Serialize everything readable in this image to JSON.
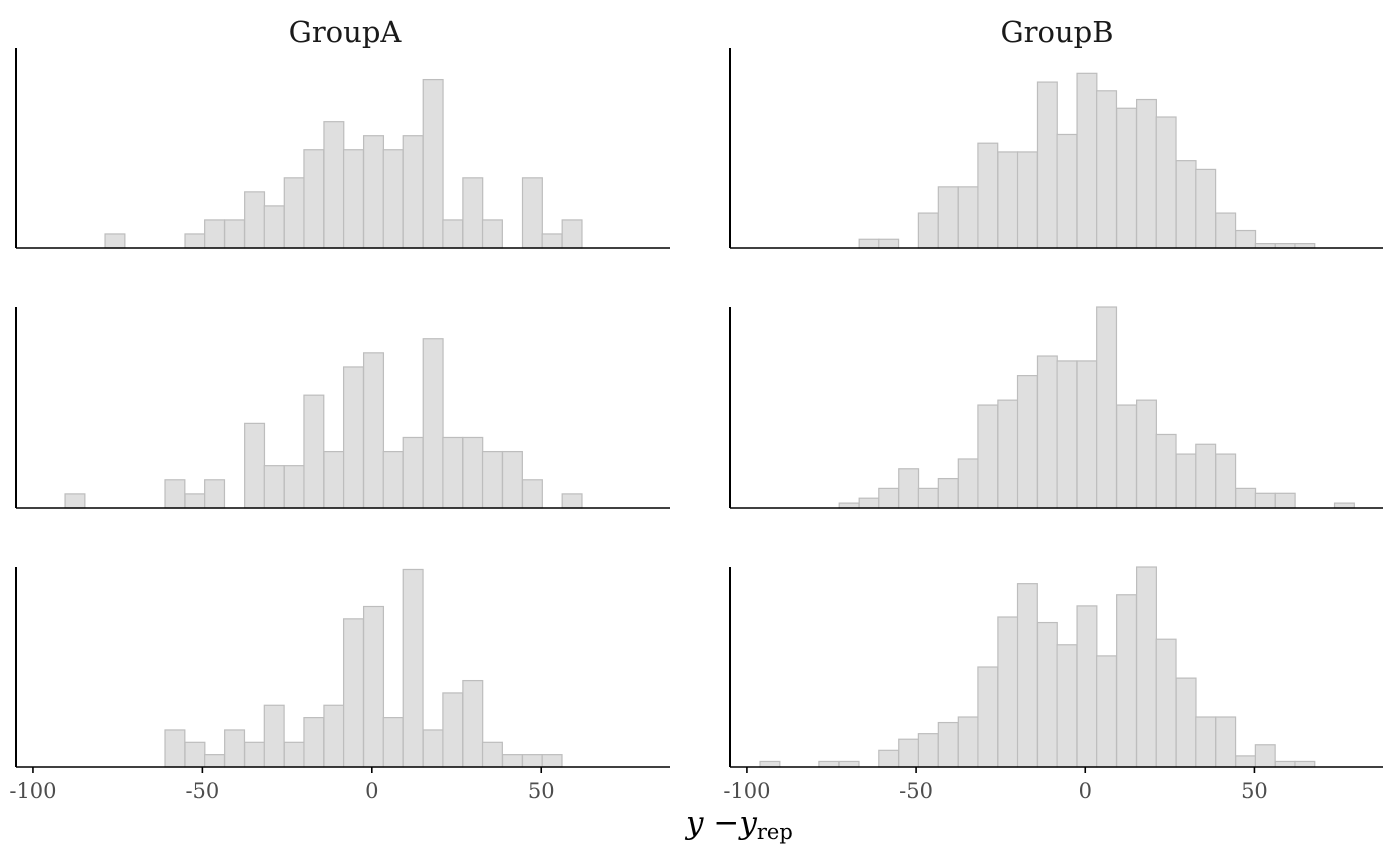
{
  "chart_data": {
    "type": "histogram",
    "facets": [
      "GroupA",
      "GroupB"
    ],
    "xlabel": {
      "main": "y −y",
      "sub": "rep"
    },
    "xlim": [
      -105,
      88
    ],
    "x_ticks": [
      -100,
      -50,
      0,
      50
    ],
    "x_tick_labels": [
      "-100",
      "-50",
      "0",
      "50"
    ],
    "bin_width": 5.85,
    "panels": [
      {
        "facet": "GroupA",
        "row": 1,
        "bins": [
          [
            -75.8,
            1
          ],
          [
            -52.2,
            1
          ],
          [
            -46.4,
            2
          ],
          [
            -40.5,
            2
          ],
          [
            -34.6,
            4
          ],
          [
            -28.8,
            3
          ],
          [
            -22.9,
            5
          ],
          [
            -17.1,
            7
          ],
          [
            -11.2,
            9
          ],
          [
            -5.4,
            7
          ],
          [
            0.5,
            8
          ],
          [
            6.3,
            7
          ],
          [
            12.2,
            8
          ],
          [
            18.1,
            12
          ],
          [
            23.9,
            2
          ],
          [
            29.8,
            5
          ],
          [
            35.6,
            2
          ],
          [
            47.4,
            5
          ],
          [
            53.2,
            1
          ],
          [
            59.1,
            2
          ]
        ],
        "ymax": 14.25
      },
      {
        "facet": "GroupB",
        "row": 1,
        "bins": [
          [
            -63.9,
            1
          ],
          [
            -58.1,
            1
          ],
          [
            -46.4,
            4
          ],
          [
            -40.5,
            7
          ],
          [
            -34.6,
            7
          ],
          [
            -28.8,
            12
          ],
          [
            -22.9,
            11
          ],
          [
            -17.1,
            11
          ],
          [
            -11.2,
            19
          ],
          [
            -5.4,
            13
          ],
          [
            0.5,
            20
          ],
          [
            6.3,
            18
          ],
          [
            12.2,
            16
          ],
          [
            18.1,
            17
          ],
          [
            23.9,
            15
          ],
          [
            29.8,
            10
          ],
          [
            35.6,
            9
          ],
          [
            41.5,
            4
          ],
          [
            47.4,
            2
          ],
          [
            53.2,
            0.5
          ],
          [
            59.1,
            0.5
          ],
          [
            64.9,
            0.5
          ]
        ],
        "ymax": 22.9
      },
      {
        "facet": "GroupA",
        "row": 2,
        "bins": [
          [
            -87.6,
            1
          ],
          [
            -58.1,
            2
          ],
          [
            -52.2,
            1
          ],
          [
            -46.4,
            2
          ],
          [
            -34.6,
            6
          ],
          [
            -28.8,
            3
          ],
          [
            -22.9,
            3
          ],
          [
            -17.1,
            8
          ],
          [
            -11.2,
            4
          ],
          [
            -5.4,
            10
          ],
          [
            0.5,
            11
          ],
          [
            6.3,
            4
          ],
          [
            12.2,
            5
          ],
          [
            18.1,
            12
          ],
          [
            23.9,
            5
          ],
          [
            29.8,
            5
          ],
          [
            35.6,
            4
          ],
          [
            41.5,
            4
          ],
          [
            47.4,
            2
          ],
          [
            59.1,
            1
          ]
        ],
        "ymax": 14.25
      },
      {
        "facet": "GroupB",
        "row": 2,
        "bins": [
          [
            -69.8,
            1
          ],
          [
            -63.9,
            2
          ],
          [
            -58.1,
            4
          ],
          [
            -52.2,
            8
          ],
          [
            -46.4,
            4
          ],
          [
            -40.5,
            6
          ],
          [
            -34.6,
            10
          ],
          [
            -28.8,
            21
          ],
          [
            -22.9,
            22
          ],
          [
            -17.1,
            27
          ],
          [
            -11.2,
            31
          ],
          [
            -5.4,
            30
          ],
          [
            0.5,
            30
          ],
          [
            6.3,
            41
          ],
          [
            12.2,
            21
          ],
          [
            18.1,
            22
          ],
          [
            23.9,
            15
          ],
          [
            29.8,
            11
          ],
          [
            35.6,
            13
          ],
          [
            41.5,
            11
          ],
          [
            47.4,
            4
          ],
          [
            53.2,
            3
          ],
          [
            59.1,
            3
          ],
          [
            76.6,
            1
          ]
        ],
        "ymax": 41
      },
      {
        "facet": "GroupA",
        "row": 3,
        "bins": [
          [
            -58.1,
            3
          ],
          [
            -52.2,
            2
          ],
          [
            -46.4,
            1
          ],
          [
            -40.5,
            3
          ],
          [
            -34.6,
            2
          ],
          [
            -28.8,
            5
          ],
          [
            -22.9,
            2
          ],
          [
            -17.1,
            4
          ],
          [
            -11.2,
            5
          ],
          [
            -5.4,
            12
          ],
          [
            0.5,
            13
          ],
          [
            6.3,
            4
          ],
          [
            12.2,
            16
          ],
          [
            18.1,
            3
          ],
          [
            23.9,
            6
          ],
          [
            29.8,
            7
          ],
          [
            35.6,
            2
          ],
          [
            41.5,
            1
          ],
          [
            47.4,
            1
          ],
          [
            53.2,
            1
          ]
        ],
        "ymax": 16.2
      },
      {
        "facet": "GroupB",
        "row": 3,
        "bins": [
          [
            -93.2,
            1
          ],
          [
            -75.8,
            1
          ],
          [
            -69.8,
            1
          ],
          [
            -58.1,
            3
          ],
          [
            -52.2,
            5
          ],
          [
            -46.4,
            6
          ],
          [
            -40.5,
            8
          ],
          [
            -34.6,
            9
          ],
          [
            -28.8,
            18
          ],
          [
            -22.9,
            27
          ],
          [
            -17.1,
            33
          ],
          [
            -11.2,
            26
          ],
          [
            -5.4,
            22
          ],
          [
            0.5,
            29
          ],
          [
            6.3,
            20
          ],
          [
            12.2,
            31
          ],
          [
            18.1,
            36
          ],
          [
            23.9,
            23
          ],
          [
            29.8,
            16
          ],
          [
            35.6,
            9
          ],
          [
            41.5,
            9
          ],
          [
            47.4,
            2
          ],
          [
            53.2,
            4
          ],
          [
            59.1,
            1
          ],
          [
            64.9,
            1
          ]
        ],
        "ymax": 36
      }
    ]
  },
  "colors": {
    "bar_fill": "#dfdfdf",
    "bar_stroke": "#bdbdbd",
    "axis": "#000000",
    "tick_text": "#4d4d4d"
  }
}
